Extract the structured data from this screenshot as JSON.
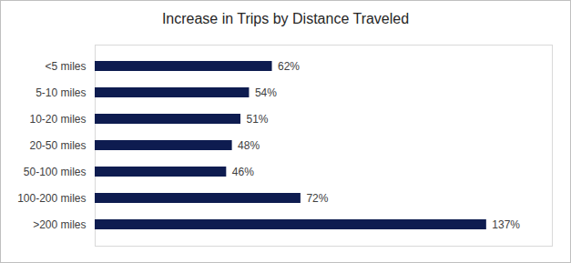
{
  "chart_data": {
    "type": "bar",
    "orientation": "horizontal",
    "title": "Increase in Trips by Distance Traveled",
    "categories": [
      "<5 miles",
      "5-10 miles",
      "10-20 miles",
      "20-50 miles",
      "50-100 miles",
      "100-200 miles",
      ">200 miles"
    ],
    "values": [
      62,
      54,
      51,
      48,
      46,
      72,
      137
    ],
    "value_labels": [
      "62%",
      "54%",
      "51%",
      "48%",
      "46%",
      "72%",
      "137%"
    ],
    "color": "#0e1c50",
    "xlim": [
      0,
      160
    ],
    "data_labels": true,
    "tick_labels": "y"
  }
}
